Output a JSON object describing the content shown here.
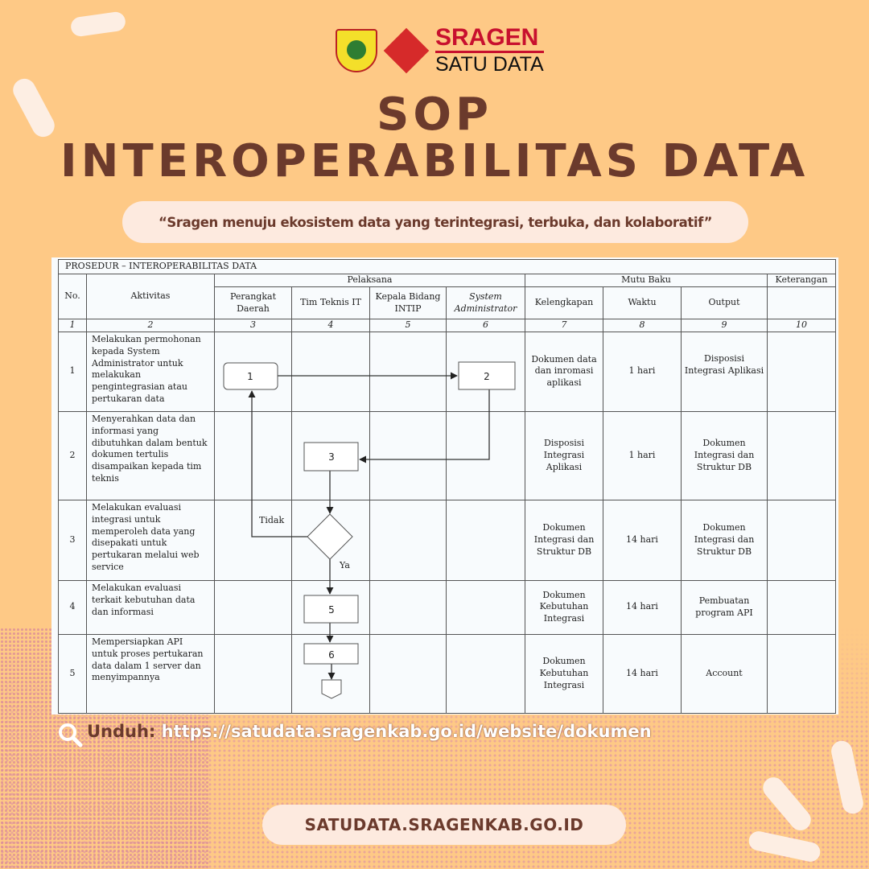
{
  "brand": {
    "name_top": "SRAGEN",
    "name_bottom": "SATU DATA",
    "colors": {
      "red": "#c8102e",
      "brown": "#6b3a2c",
      "background": "#fec986"
    }
  },
  "title": {
    "line1": "SOP",
    "line2": "INTEROPERABILITAS DATA"
  },
  "tagline": "“Sragen menuju ekosistem data yang terintegrasi, terbuka, dan kolaboratif”",
  "sop": {
    "heading": "PROSEDUR  –  INTEROPERABILITAS DATA",
    "headers": {
      "no": "No.",
      "aktivitas": "Aktivitas",
      "pelaksana": "Pelaksana",
      "mutu_baku": "Mutu Baku",
      "keterangan": "Keterangan",
      "pelaksana_cols": [
        "Perangkat Daerah",
        "Tim Teknis IT",
        "Kepala Bidang INTIP",
        "System Administrator"
      ],
      "mutu_cols": [
        "Kelengkapan",
        "Waktu",
        "Output"
      ]
    },
    "col_numbers": [
      "1",
      "2",
      "3",
      "4",
      "5",
      "6",
      "7",
      "8",
      "9",
      "10"
    ],
    "rows": [
      {
        "no": "1",
        "aktivitas": "Melakukan permohonan kepada System Administrator untuk melakukan pengintegrasian atau pertukaran data",
        "kelengkapan": "Dokumen data dan inromasi aplikasi",
        "waktu": "1 hari",
        "output": "Disposisi Integrasi Aplikasi"
      },
      {
        "no": "2",
        "aktivitas": "Menyerahkan data dan informasi yang dibutuhkan dalam bentuk dokumen tertulis disampaikan kepada tim teknis",
        "kelengkapan": "Disposisi Integrasi Aplikasi",
        "waktu": "1 hari",
        "output": "Dokumen Integrasi dan Struktur DB"
      },
      {
        "no": "3",
        "aktivitas": "Melakukan evaluasi integrasi untuk memperoleh data yang disepakati untuk pertukaran melalui web service",
        "kelengkapan": "Dokumen Integrasi dan Struktur DB",
        "waktu": "14 hari",
        "output": "Dokumen Integrasi dan Struktur DB"
      },
      {
        "no": "4",
        "aktivitas": "Melakukan evaluasi terkait kebutuhan data dan informasi",
        "kelengkapan": "Dokumen Kebutuhan Integrasi",
        "waktu": "14 hari",
        "output": "Pembuatan program API"
      },
      {
        "no": "5",
        "aktivitas": "Mempersiapkan API untuk proses pertukaran data dalam 1 server dan menyimpannya",
        "kelengkapan": "Dokumen Kebutuhan Integrasi",
        "waktu": "14 hari",
        "output": "Account"
      }
    ],
    "flow": {
      "steps": [
        "1",
        "2",
        "3",
        "5",
        "6"
      ],
      "decision_no": "Tidak",
      "decision_yes": "Ya"
    }
  },
  "footer": {
    "download_label": "Unduh:",
    "download_url": "https://satudata.sragenkab.go.id/website/dokumen",
    "site": "SATUDATA.SRAGENKAB.GO.ID",
    "search_icon": "search-icon"
  }
}
